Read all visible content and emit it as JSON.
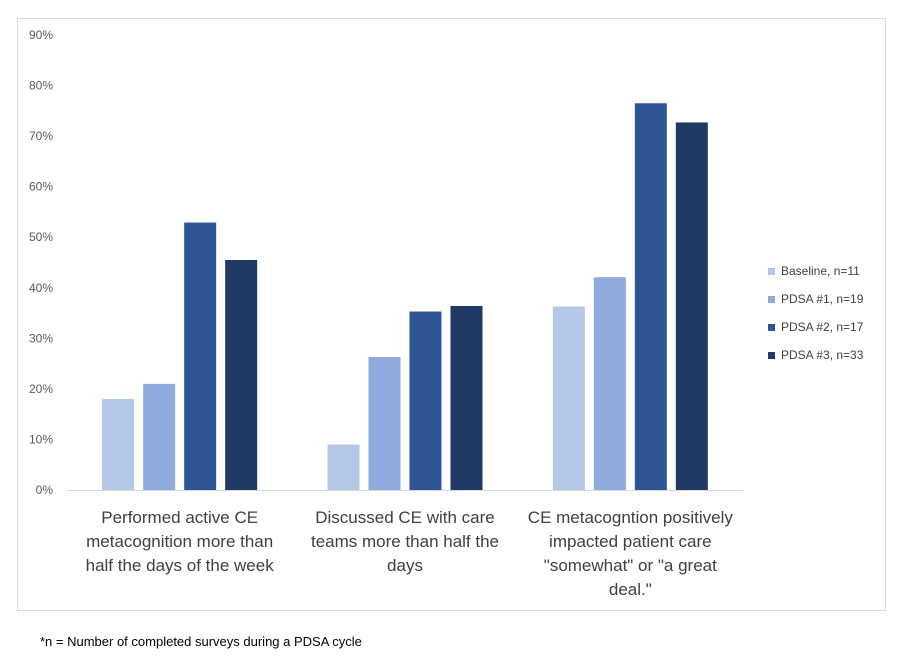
{
  "chart_data": {
    "type": "bar",
    "categories": [
      "Performed active CE metacognition more than half the days of the week",
      "Discussed CE  with care teams more than half the days",
      "CE metacogntion positively impacted patient care \"somewhat\" or \"a great deal.\""
    ],
    "category_lines": [
      [
        "Performed active CE",
        "metacognition more than",
        "half the days of the week"
      ],
      [
        "Discussed CE  with care",
        "teams more than half the",
        "days"
      ],
      [
        "CE metacogntion positively",
        "impacted patient care",
        "\"somewhat\" or \"a great",
        "deal.\""
      ]
    ],
    "series": [
      {
        "name": "Baseline, n=11",
        "color": "#b4c7e7",
        "values": [
          18,
          9,
          36.3
        ]
      },
      {
        "name": "PDSA #1, n=19",
        "color": "#8faadc",
        "values": [
          21,
          26.3,
          42.1
        ]
      },
      {
        "name": "PDSA #2, n=17",
        "color": "#2f5597",
        "values": [
          52.9,
          35.3,
          76.5
        ]
      },
      {
        "name": "PDSA #3, n=33",
        "color": "#203864",
        "values": [
          45.5,
          36.4,
          72.7
        ]
      }
    ],
    "ylim": [
      0,
      90
    ],
    "yticks": [
      "0%",
      "10%",
      "20%",
      "30%",
      "40%",
      "50%",
      "60%",
      "70%",
      "80%",
      "90%"
    ],
    "grid": false,
    "legend_position": "right"
  },
  "footnote": "*n = Number of completed surveys during a PDSA cycle"
}
